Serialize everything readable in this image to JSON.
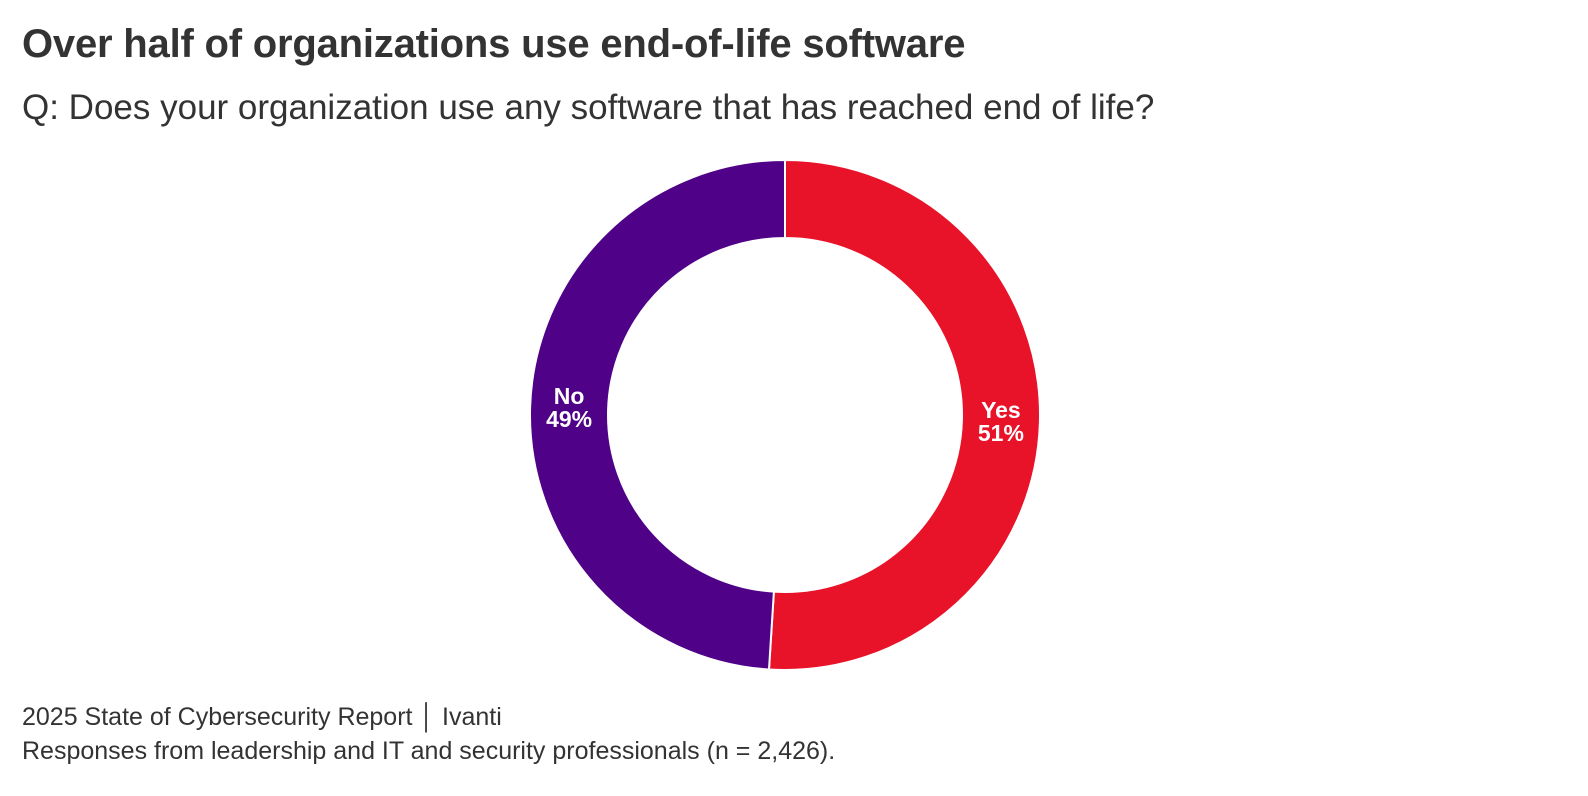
{
  "header": {
    "title": "Over half of organizations use end-of-life software",
    "subtitle": "Q: Does your organization use any software that has reached end of life?"
  },
  "chart_data": {
    "type": "pie",
    "donut": true,
    "categories": [
      "Yes",
      "No"
    ],
    "values": [
      51,
      49
    ],
    "value_labels": [
      "51%",
      "49%"
    ],
    "colors": [
      "#E81229",
      "#4F0287"
    ]
  },
  "footer": {
    "source": "2025 State of Cybersecurity Report │ Ivanti",
    "note": "Responses from leadership and IT and security professionals (n = 2,426)."
  }
}
